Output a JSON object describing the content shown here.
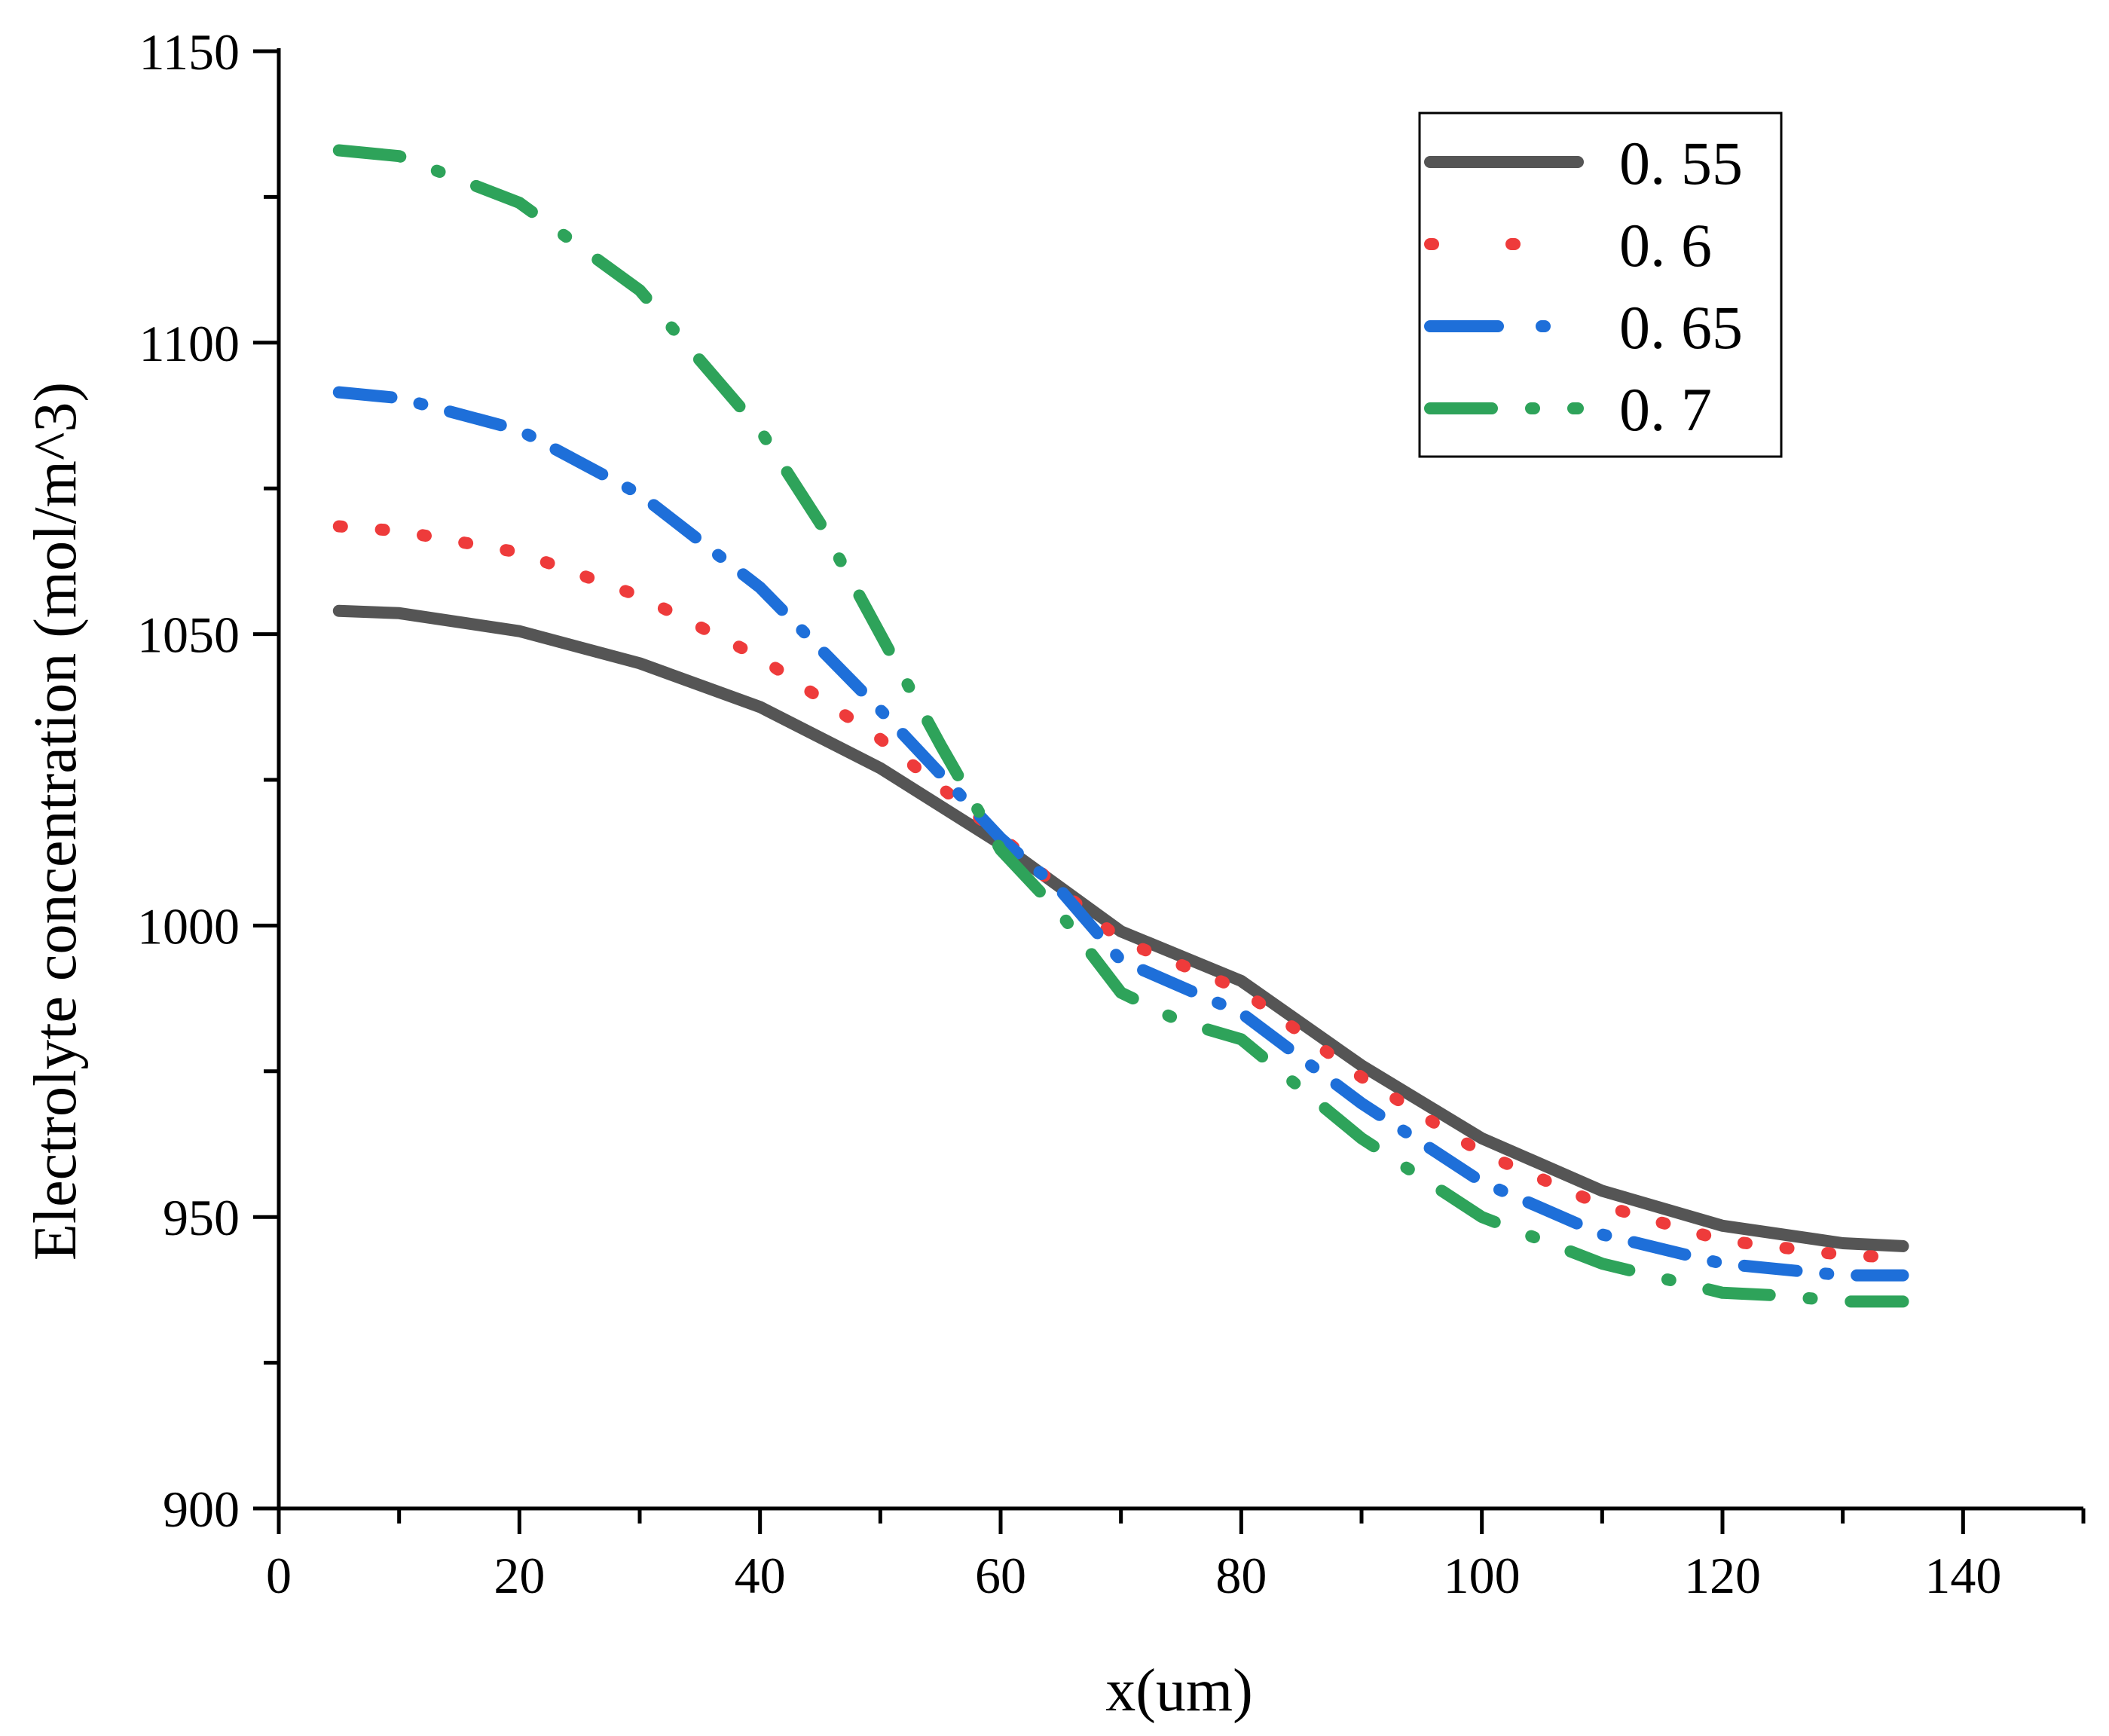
{
  "chart_data": {
    "type": "line",
    "title": "",
    "xlabel": "x(um)",
    "ylabel": "Electrolyte concentration (mol/m^3)",
    "xlim": [
      0,
      150
    ],
    "ylim": [
      900,
      1150
    ],
    "xticks": [
      0,
      20,
      40,
      60,
      80,
      100,
      120,
      140
    ],
    "xtick_labels": [
      "0",
      "20",
      "40",
      "60",
      "80",
      "100",
      "120",
      "140"
    ],
    "yticks": [
      900,
      950,
      1000,
      1050,
      1100,
      1150
    ],
    "ytick_labels": [
      "900",
      "950",
      "1000",
      "1050",
      "1100",
      "1150"
    ],
    "legend_position": "top-right",
    "grid": false,
    "series": [
      {
        "name": "0. 55",
        "color": "#555555",
        "style": "solid",
        "x": [
          5,
          10,
          20,
          30,
          40,
          50,
          60,
          65,
          70,
          80,
          90,
          100,
          110,
          120,
          130,
          135
        ],
        "y": [
          1054,
          1053.6,
          1050.5,
          1045,
          1037.5,
          1027,
          1014,
          1006.5,
          999,
          990.5,
          976,
          963.5,
          954.5,
          948.5,
          945.5,
          945
        ]
      },
      {
        "name": "0. 6",
        "color": "#EE3B3B",
        "style": "dotted",
        "x": [
          5,
          10,
          20,
          30,
          40,
          50,
          60,
          65,
          70,
          80,
          90,
          100,
          110,
          120,
          130,
          135
        ],
        "y": [
          1068.5,
          1067.7,
          1064,
          1056.5,
          1046,
          1032,
          1015.5,
          1006,
          997.5,
          989,
          974,
          961,
          952,
          946,
          943.5,
          943
        ]
      },
      {
        "name": "0. 65",
        "color": "#1E6FD9",
        "style": "dashdot",
        "x": [
          5,
          10,
          20,
          30,
          40,
          50,
          60,
          65,
          70,
          80,
          90,
          100,
          110,
          120,
          130,
          135
        ],
        "y": [
          1091.5,
          1090.5,
          1085,
          1074,
          1058,
          1037,
          1015,
          1006,
          994,
          985,
          969.5,
          956,
          947,
          942,
          940,
          940
        ]
      },
      {
        "name": "0. 7",
        "color": "#2EA35A",
        "style": "dashdot",
        "x": [
          5,
          10,
          20,
          30,
          40,
          45,
          50,
          55,
          60,
          65,
          70,
          75,
          80,
          90,
          100,
          110,
          120,
          125,
          130,
          135
        ],
        "y": [
          1133,
          1132,
          1124,
          1109,
          1085,
          1069,
          1050,
          1031,
          1013,
          1002,
          988.5,
          983.5,
          980.5,
          963.5,
          950,
          942,
          937,
          936.5,
          935.5,
          935.5
        ]
      }
    ]
  }
}
